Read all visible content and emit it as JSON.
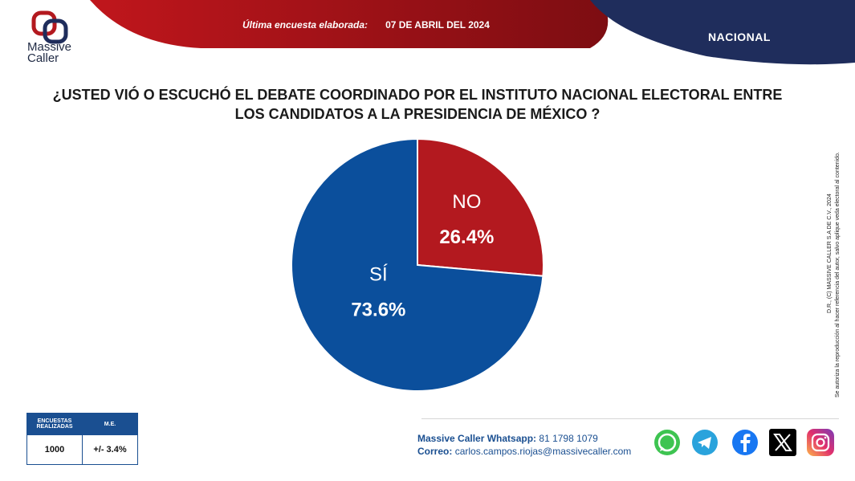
{
  "header": {
    "brand_line1": "Massive",
    "brand_line2": "Caller",
    "survey_label": "Última encuesta elaborada:",
    "survey_date": "07 DE ABRIL DEL 2024",
    "scope": "NACIONAL"
  },
  "question": {
    "line1": "¿USTED VIÓ O ESCUCHÓ EL DEBATE COORDINADO POR EL INSTITUTO NACIONAL ELECTORAL  ENTRE",
    "line2": "LOS CANDIDATOS A  LA PRESIDENCIA DE MÉXICO ?"
  },
  "chart_data": {
    "type": "pie",
    "slices": [
      {
        "label": "NO",
        "value": 26.4,
        "display": "26.4%",
        "color": "#b3191f"
      },
      {
        "label": "SÍ",
        "value": 73.6,
        "display": "73.6%",
        "color": "#0b4f9c"
      }
    ]
  },
  "disclaimer": {
    "line1": "D.R., (C) MASSIVE CALLER S.A DE C.V., 2024",
    "line2": "Se autoriza la reproducción al hacer referencia del autor, salvo aplique veda electoral al contenido."
  },
  "info_table": {
    "col1_header_a": "ENCUESTAS",
    "col1_header_b": "REALIZADAS",
    "col2_header": "M.E.",
    "surveys": "1000",
    "margin": "+/- 3.4%"
  },
  "contact": {
    "whatsapp_label": "Massive Caller Whatsapp:",
    "whatsapp_number": "81 1798 1079",
    "email_label": "Correo:",
    "email": "carlos.campos.riojas@massivecaller.com"
  },
  "colors": {
    "red": "#b3191f",
    "navy": "#1f2d5c",
    "blue": "#0b4f9c"
  }
}
